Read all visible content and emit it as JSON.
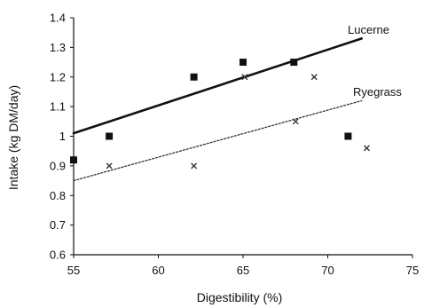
{
  "chart_data": {
    "type": "scatter",
    "xlabel": "Digestibility (%)",
    "ylabel": "Intake (kg DM/day)",
    "xlim": [
      55,
      75
    ],
    "ylim": [
      0.6,
      1.4
    ],
    "x_ticks": [
      "55",
      "60",
      "65",
      "70",
      "75"
    ],
    "y_ticks": [
      "0.6",
      "0.7",
      "0.8",
      "0.9",
      "1",
      "1.1",
      "1.2",
      "1.3",
      "1.4"
    ],
    "grid": false,
    "series": [
      {
        "name": "Lucerne",
        "marker": "square",
        "color": "#111111",
        "points": [
          {
            "x": 55,
            "y": 0.92
          },
          {
            "x": 57.1,
            "y": 1.0
          },
          {
            "x": 62.1,
            "y": 1.2
          },
          {
            "x": 65,
            "y": 1.25
          },
          {
            "x": 68,
            "y": 1.25
          },
          {
            "x": 71.2,
            "y": 1.0
          }
        ],
        "trendline": {
          "style": "solid",
          "x": [
            55,
            72
          ],
          "y": [
            1.01,
            1.33
          ]
        }
      },
      {
        "name": "Ryegrass",
        "marker": "cross",
        "color": "#333333",
        "points": [
          {
            "x": 57.1,
            "y": 0.9
          },
          {
            "x": 62.1,
            "y": 0.9
          },
          {
            "x": 65.1,
            "y": 1.2
          },
          {
            "x": 68.1,
            "y": 1.05
          },
          {
            "x": 69.2,
            "y": 1.2
          },
          {
            "x": 72.3,
            "y": 0.96
          }
        ],
        "trendline": {
          "style": "dotted",
          "x": [
            55,
            72
          ],
          "y": [
            0.85,
            1.12
          ]
        }
      }
    ]
  }
}
